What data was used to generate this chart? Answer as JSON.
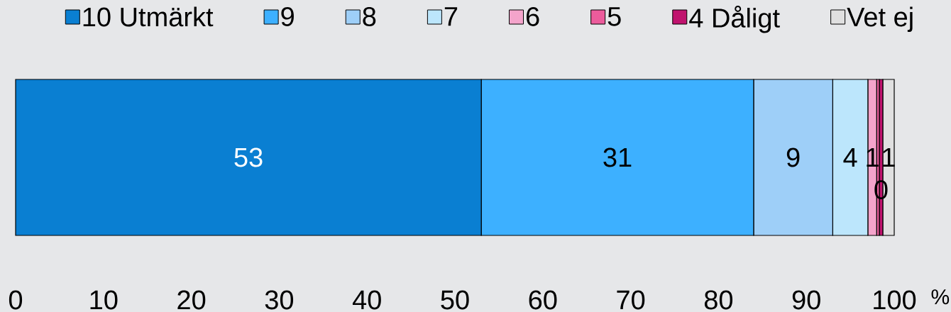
{
  "chart_data": {
    "type": "bar",
    "orientation": "horizontal",
    "stacked": true,
    "categories": [
      null
    ],
    "series": [
      {
        "name": "10 Utmärkt",
        "color": "#0a7fd2",
        "values": [
          53
        ],
        "value_labels": [
          "53"
        ]
      },
      {
        "name": "9",
        "color": "#3db0ff",
        "values": [
          31
        ],
        "value_labels": [
          "31"
        ]
      },
      {
        "name": "8",
        "color": "#9ecff8",
        "values": [
          9
        ],
        "value_labels": [
          "9"
        ]
      },
      {
        "name": "7",
        "color": "#bce6fc",
        "values": [
          4
        ],
        "value_labels": [
          "4"
        ]
      },
      {
        "name": "6",
        "color": "#f4a4cb",
        "values": [
          1
        ],
        "value_labels": [
          "1"
        ]
      },
      {
        "name": "5",
        "color": "#ec5c9c",
        "values": [
          0.3
        ],
        "value_labels": [
          null
        ]
      },
      {
        "name": "4 Dåligt",
        "color": "#c0136e",
        "values": [
          0.4
        ],
        "value_labels": [
          "0"
        ]
      },
      {
        "name": "Vet ej",
        "color": "#e0e0e0",
        "values": [
          1.3
        ],
        "value_labels": [
          "1"
        ]
      }
    ],
    "xlabel": "%",
    "xlim": [
      0,
      100
    ],
    "xticks": [
      0,
      10,
      20,
      30,
      40,
      50,
      60,
      70,
      80,
      90,
      100
    ],
    "legend": "top"
  }
}
